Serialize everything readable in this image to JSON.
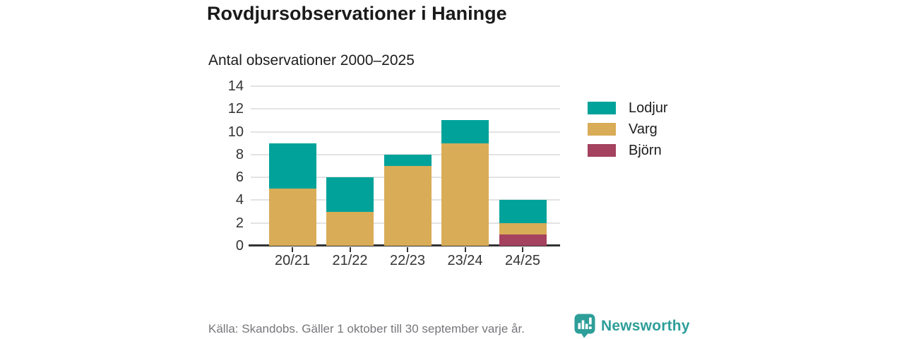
{
  "title": "Rovdjursobservationer i Haninge",
  "subtitle": "Antal observationer 2000–2025",
  "footer": {
    "source": "Källa: Skandobs. Gäller 1 oktober till 30 september varje år.",
    "brand": "Newsworthy",
    "logo_icon": "newsworthy-speech-bubble-bar-chart-icon"
  },
  "colors": {
    "lodjur": "#00a29a",
    "varg": "#d9ac57",
    "bjorn": "#a4425f",
    "brand_teal": "#2e9e99",
    "grid": "#e3e3e3",
    "axis": "#333333",
    "title_text": "#1a1a1a",
    "body_text": "#1d1d1d",
    "muted_text": "#76777b"
  },
  "chart_data": {
    "type": "bar",
    "stacked": true,
    "title": "Rovdjursobservationer i Haninge",
    "subtitle": "Antal observationer 2000–2025",
    "categories": [
      "20/21",
      "21/22",
      "22/23",
      "23/24",
      "24/25"
    ],
    "series": [
      {
        "name": "Björn",
        "color_key": "bjorn",
        "values": [
          0,
          0,
          0,
          0,
          1
        ]
      },
      {
        "name": "Varg",
        "color_key": "varg",
        "values": [
          5,
          3,
          7,
          9,
          1
        ]
      },
      {
        "name": "Lodjur",
        "color_key": "lodjur",
        "values": [
          4,
          3,
          1,
          2,
          2
        ]
      }
    ],
    "totals": [
      9,
      6,
      8,
      11,
      4
    ],
    "legend": [
      {
        "label": "Lodjur",
        "color_key": "lodjur"
      },
      {
        "label": "Varg",
        "color_key": "varg"
      },
      {
        "label": "Björn",
        "color_key": "bjorn"
      }
    ],
    "legend_position": "right",
    "y_ticks": [
      0,
      2,
      4,
      6,
      8,
      10,
      12,
      14
    ],
    "ylim": [
      0,
      14
    ],
    "xlabel": "",
    "ylabel": "",
    "grid": true
  }
}
